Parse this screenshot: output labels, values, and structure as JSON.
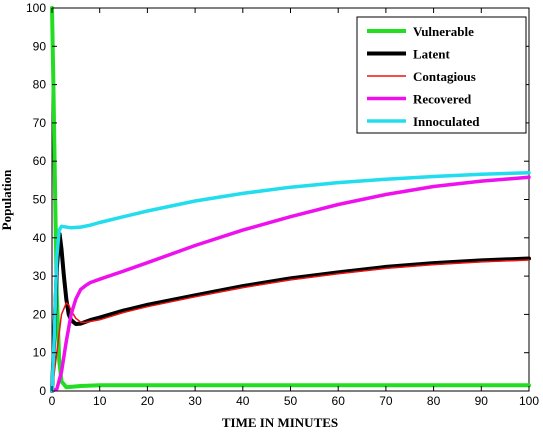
{
  "chart_data": {
    "type": "line",
    "title": "",
    "xlabel": "TIME IN MINUTES",
    "ylabel": "Population",
    "xlim": [
      0,
      100
    ],
    "ylim": [
      0,
      100
    ],
    "xticks": [
      0,
      10,
      20,
      30,
      40,
      50,
      60,
      70,
      80,
      90,
      100
    ],
    "yticks": [
      0,
      10,
      20,
      30,
      40,
      50,
      60,
      70,
      80,
      90,
      100
    ],
    "grid": false,
    "legend_position": "top-right",
    "series": [
      {
        "name": "Vulnerable",
        "color": "#22dd22",
        "width": 4,
        "points": [
          [
            0,
            100
          ],
          [
            0.3,
            80
          ],
          [
            0.6,
            55
          ],
          [
            1,
            25
          ],
          [
            1.5,
            8
          ],
          [
            2,
            2.5
          ],
          [
            3,
            1
          ],
          [
            6,
            1.3
          ],
          [
            10,
            1.5
          ],
          [
            20,
            1.5
          ],
          [
            50,
            1.5
          ],
          [
            100,
            1.5
          ]
        ]
      },
      {
        "name": "Latent",
        "color": "#000000",
        "width": 4,
        "points": [
          [
            0,
            0
          ],
          [
            0.5,
            15
          ],
          [
            1,
            32
          ],
          [
            1.6,
            41
          ],
          [
            2,
            37
          ],
          [
            2.5,
            30
          ],
          [
            3,
            24
          ],
          [
            3.5,
            20
          ],
          [
            4,
            18.5
          ],
          [
            5,
            17.5
          ],
          [
            6,
            17.6
          ],
          [
            8,
            18.5
          ],
          [
            10,
            19.2
          ],
          [
            15,
            21
          ],
          [
            20,
            22.5
          ],
          [
            30,
            25
          ],
          [
            40,
            27.4
          ],
          [
            50,
            29.4
          ],
          [
            60,
            31
          ],
          [
            70,
            32.4
          ],
          [
            80,
            33.4
          ],
          [
            90,
            34.1
          ],
          [
            100,
            34.6
          ]
        ]
      },
      {
        "name": "Contagious",
        "color": "#ee1111",
        "width": 1.5,
        "points": [
          [
            0,
            0
          ],
          [
            1,
            10
          ],
          [
            2,
            20
          ],
          [
            3,
            23
          ],
          [
            3.5,
            22.5
          ],
          [
            4,
            21
          ],
          [
            5,
            19
          ],
          [
            6,
            18
          ],
          [
            7,
            17.9
          ],
          [
            10,
            18.6
          ],
          [
            15,
            20.5
          ],
          [
            20,
            22
          ],
          [
            30,
            24.6
          ],
          [
            40,
            27
          ],
          [
            50,
            29
          ],
          [
            60,
            30.6
          ],
          [
            70,
            32
          ],
          [
            80,
            33
          ],
          [
            90,
            33.7
          ],
          [
            100,
            34.2
          ]
        ]
      },
      {
        "name": "Recovered",
        "color": "#ee11ee",
        "width": 3.5,
        "points": [
          [
            0,
            0
          ],
          [
            1,
            0.5
          ],
          [
            2,
            5
          ],
          [
            3,
            13
          ],
          [
            4,
            20
          ],
          [
            5,
            24
          ],
          [
            6,
            26.5
          ],
          [
            7,
            27.5
          ],
          [
            8,
            28.3
          ],
          [
            10,
            29.2
          ],
          [
            15,
            31.3
          ],
          [
            20,
            33.5
          ],
          [
            30,
            38
          ],
          [
            40,
            42
          ],
          [
            50,
            45.5
          ],
          [
            60,
            48.7
          ],
          [
            70,
            51.3
          ],
          [
            80,
            53.4
          ],
          [
            90,
            54.8
          ],
          [
            100,
            55.8
          ]
        ]
      },
      {
        "name": "Innoculated",
        "color": "#22ddee",
        "width": 3.5,
        "points": [
          [
            0,
            0
          ],
          [
            0.5,
            15
          ],
          [
            1,
            35
          ],
          [
            1.5,
            42
          ],
          [
            2,
            43
          ],
          [
            4,
            42.6
          ],
          [
            6,
            42.8
          ],
          [
            8,
            43.3
          ],
          [
            10,
            44
          ],
          [
            15,
            45.5
          ],
          [
            20,
            47
          ],
          [
            30,
            49.6
          ],
          [
            40,
            51.6
          ],
          [
            50,
            53.2
          ],
          [
            60,
            54.4
          ],
          [
            70,
            55.3
          ],
          [
            80,
            56
          ],
          [
            90,
            56.6
          ],
          [
            100,
            57
          ]
        ]
      }
    ]
  }
}
